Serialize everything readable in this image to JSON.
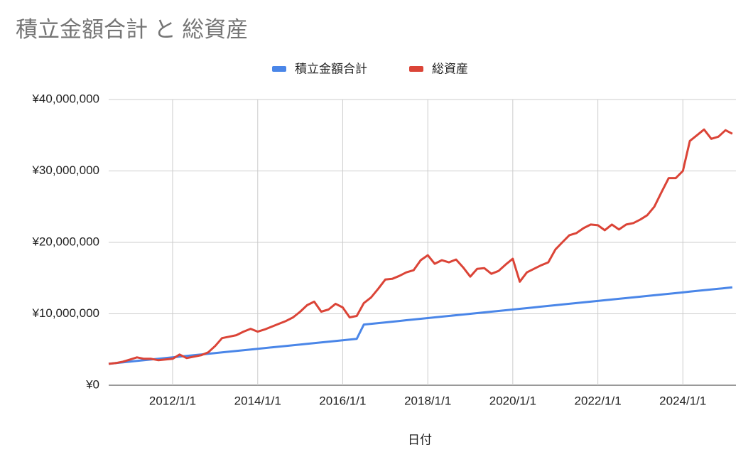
{
  "chart_data": {
    "type": "line",
    "title": "積立金額合計 と 総資産",
    "x_label": "日付",
    "x": [
      "2010/7/1",
      "2010/9/1",
      "2010/11/1",
      "2011/1/1",
      "2011/3/1",
      "2011/5/1",
      "2011/7/1",
      "2011/9/1",
      "2011/11/1",
      "2012/1/1",
      "2012/3/1",
      "2012/5/1",
      "2012/7/1",
      "2012/9/1",
      "2012/11/1",
      "2013/1/1",
      "2013/3/1",
      "2013/5/1",
      "2013/7/1",
      "2013/9/1",
      "2013/11/1",
      "2014/1/1",
      "2014/3/1",
      "2014/5/1",
      "2014/7/1",
      "2014/9/1",
      "2014/11/1",
      "2015/1/1",
      "2015/3/1",
      "2015/5/1",
      "2015/7/1",
      "2015/9/1",
      "2015/11/1",
      "2016/1/1",
      "2016/3/1",
      "2016/5/1",
      "2016/7/1",
      "2016/9/1",
      "2016/11/1",
      "2017/1/1",
      "2017/3/1",
      "2017/5/1",
      "2017/7/1",
      "2017/9/1",
      "2017/11/1",
      "2018/1/1",
      "2018/3/1",
      "2018/5/1",
      "2018/7/1",
      "2018/9/1",
      "2018/11/1",
      "2019/1/1",
      "2019/3/1",
      "2019/5/1",
      "2019/7/1",
      "2019/9/1",
      "2019/11/1",
      "2020/1/1",
      "2020/3/1",
      "2020/5/1",
      "2020/7/1",
      "2020/9/1",
      "2020/11/1",
      "2021/1/1",
      "2021/3/1",
      "2021/5/1",
      "2021/7/1",
      "2021/9/1",
      "2021/11/1",
      "2022/1/1",
      "2022/3/1",
      "2022/5/1",
      "2022/7/1",
      "2022/9/1",
      "2022/11/1",
      "2023/1/1",
      "2023/3/1",
      "2023/5/1",
      "2023/7/1",
      "2023/9/1",
      "2023/11/1",
      "2024/1/1",
      "2024/3/1",
      "2024/5/1",
      "2024/7/1",
      "2024/9/1",
      "2024/11/1",
      "2025/1/1",
      "2025/3/1"
    ],
    "series": [
      {
        "name": "積立金額合計",
        "color": "#4a86e8",
        "values": [
          3000000,
          3100000,
          3200000,
          3300000,
          3400000,
          3500000,
          3600000,
          3700000,
          3800000,
          3900000,
          4000000,
          4100000,
          4200000,
          4300000,
          4400000,
          4500000,
          4600000,
          4700000,
          4800000,
          4900000,
          5000000,
          5100000,
          5200000,
          5300000,
          5400000,
          5500000,
          5600000,
          5700000,
          5800000,
          5900000,
          6000000,
          6100000,
          6200000,
          6300000,
          6400000,
          6500000,
          8500000,
          8600000,
          8700000,
          8800000,
          8900000,
          9000000,
          9100000,
          9200000,
          9300000,
          9400000,
          9500000,
          9600000,
          9700000,
          9800000,
          9900000,
          10000000,
          10100000,
          10200000,
          10300000,
          10400000,
          10500000,
          10600000,
          10700000,
          10800000,
          10900000,
          11000000,
          11100000,
          11200000,
          11300000,
          11400000,
          11500000,
          11600000,
          11700000,
          11800000,
          11900000,
          12000000,
          12100000,
          12200000,
          12300000,
          12400000,
          12500000,
          12600000,
          12700000,
          12800000,
          12900000,
          13000000,
          13100000,
          13200000,
          13300000,
          13400000,
          13500000,
          13600000,
          13700000
        ]
      },
      {
        "name": "総資産",
        "color": "#db4437",
        "values": [
          3000000,
          3100000,
          3300000,
          3600000,
          3900000,
          3700000,
          3700000,
          3500000,
          3600000,
          3700000,
          4300000,
          3800000,
          4000000,
          4200000,
          4600000,
          5500000,
          6600000,
          6800000,
          7000000,
          7500000,
          7900000,
          7500000,
          7800000,
          8200000,
          8600000,
          9000000,
          9500000,
          10300000,
          11200000,
          11700000,
          10300000,
          10600000,
          11400000,
          10900000,
          9500000,
          9700000,
          11500000,
          12300000,
          13500000,
          14800000,
          14900000,
          15300000,
          15800000,
          16100000,
          17500000,
          18200000,
          17000000,
          17500000,
          17200000,
          17600000,
          16500000,
          15200000,
          16300000,
          16400000,
          15600000,
          16000000,
          16900000,
          17700000,
          14500000,
          15800000,
          16300000,
          16800000,
          17200000,
          19000000,
          20000000,
          21000000,
          21300000,
          22000000,
          22500000,
          22400000,
          21700000,
          22500000,
          21800000,
          22500000,
          22700000,
          23200000,
          23800000,
          25000000,
          27000000,
          29000000,
          29000000,
          30000000,
          34200000,
          35000000,
          35800000,
          34500000,
          34800000,
          35700000,
          35200000
        ]
      }
    ],
    "xlim": [
      "2010/7/1",
      "2025/4/1"
    ],
    "xticks": [
      "2012/1/1",
      "2014/1/1",
      "2016/1/1",
      "2018/1/1",
      "2020/1/1",
      "2022/1/1",
      "2024/1/1"
    ],
    "ylim": [
      0,
      40000000
    ],
    "yticks": [
      {
        "value": 0,
        "label": "¥0"
      },
      {
        "value": 10000000,
        "label": "¥10,000,000"
      },
      {
        "value": 20000000,
        "label": "¥20,000,000"
      },
      {
        "value": 30000000,
        "label": "¥30,000,000"
      },
      {
        "value": 40000000,
        "label": "¥40,000,000"
      }
    ],
    "grid": true,
    "legend": "top"
  }
}
